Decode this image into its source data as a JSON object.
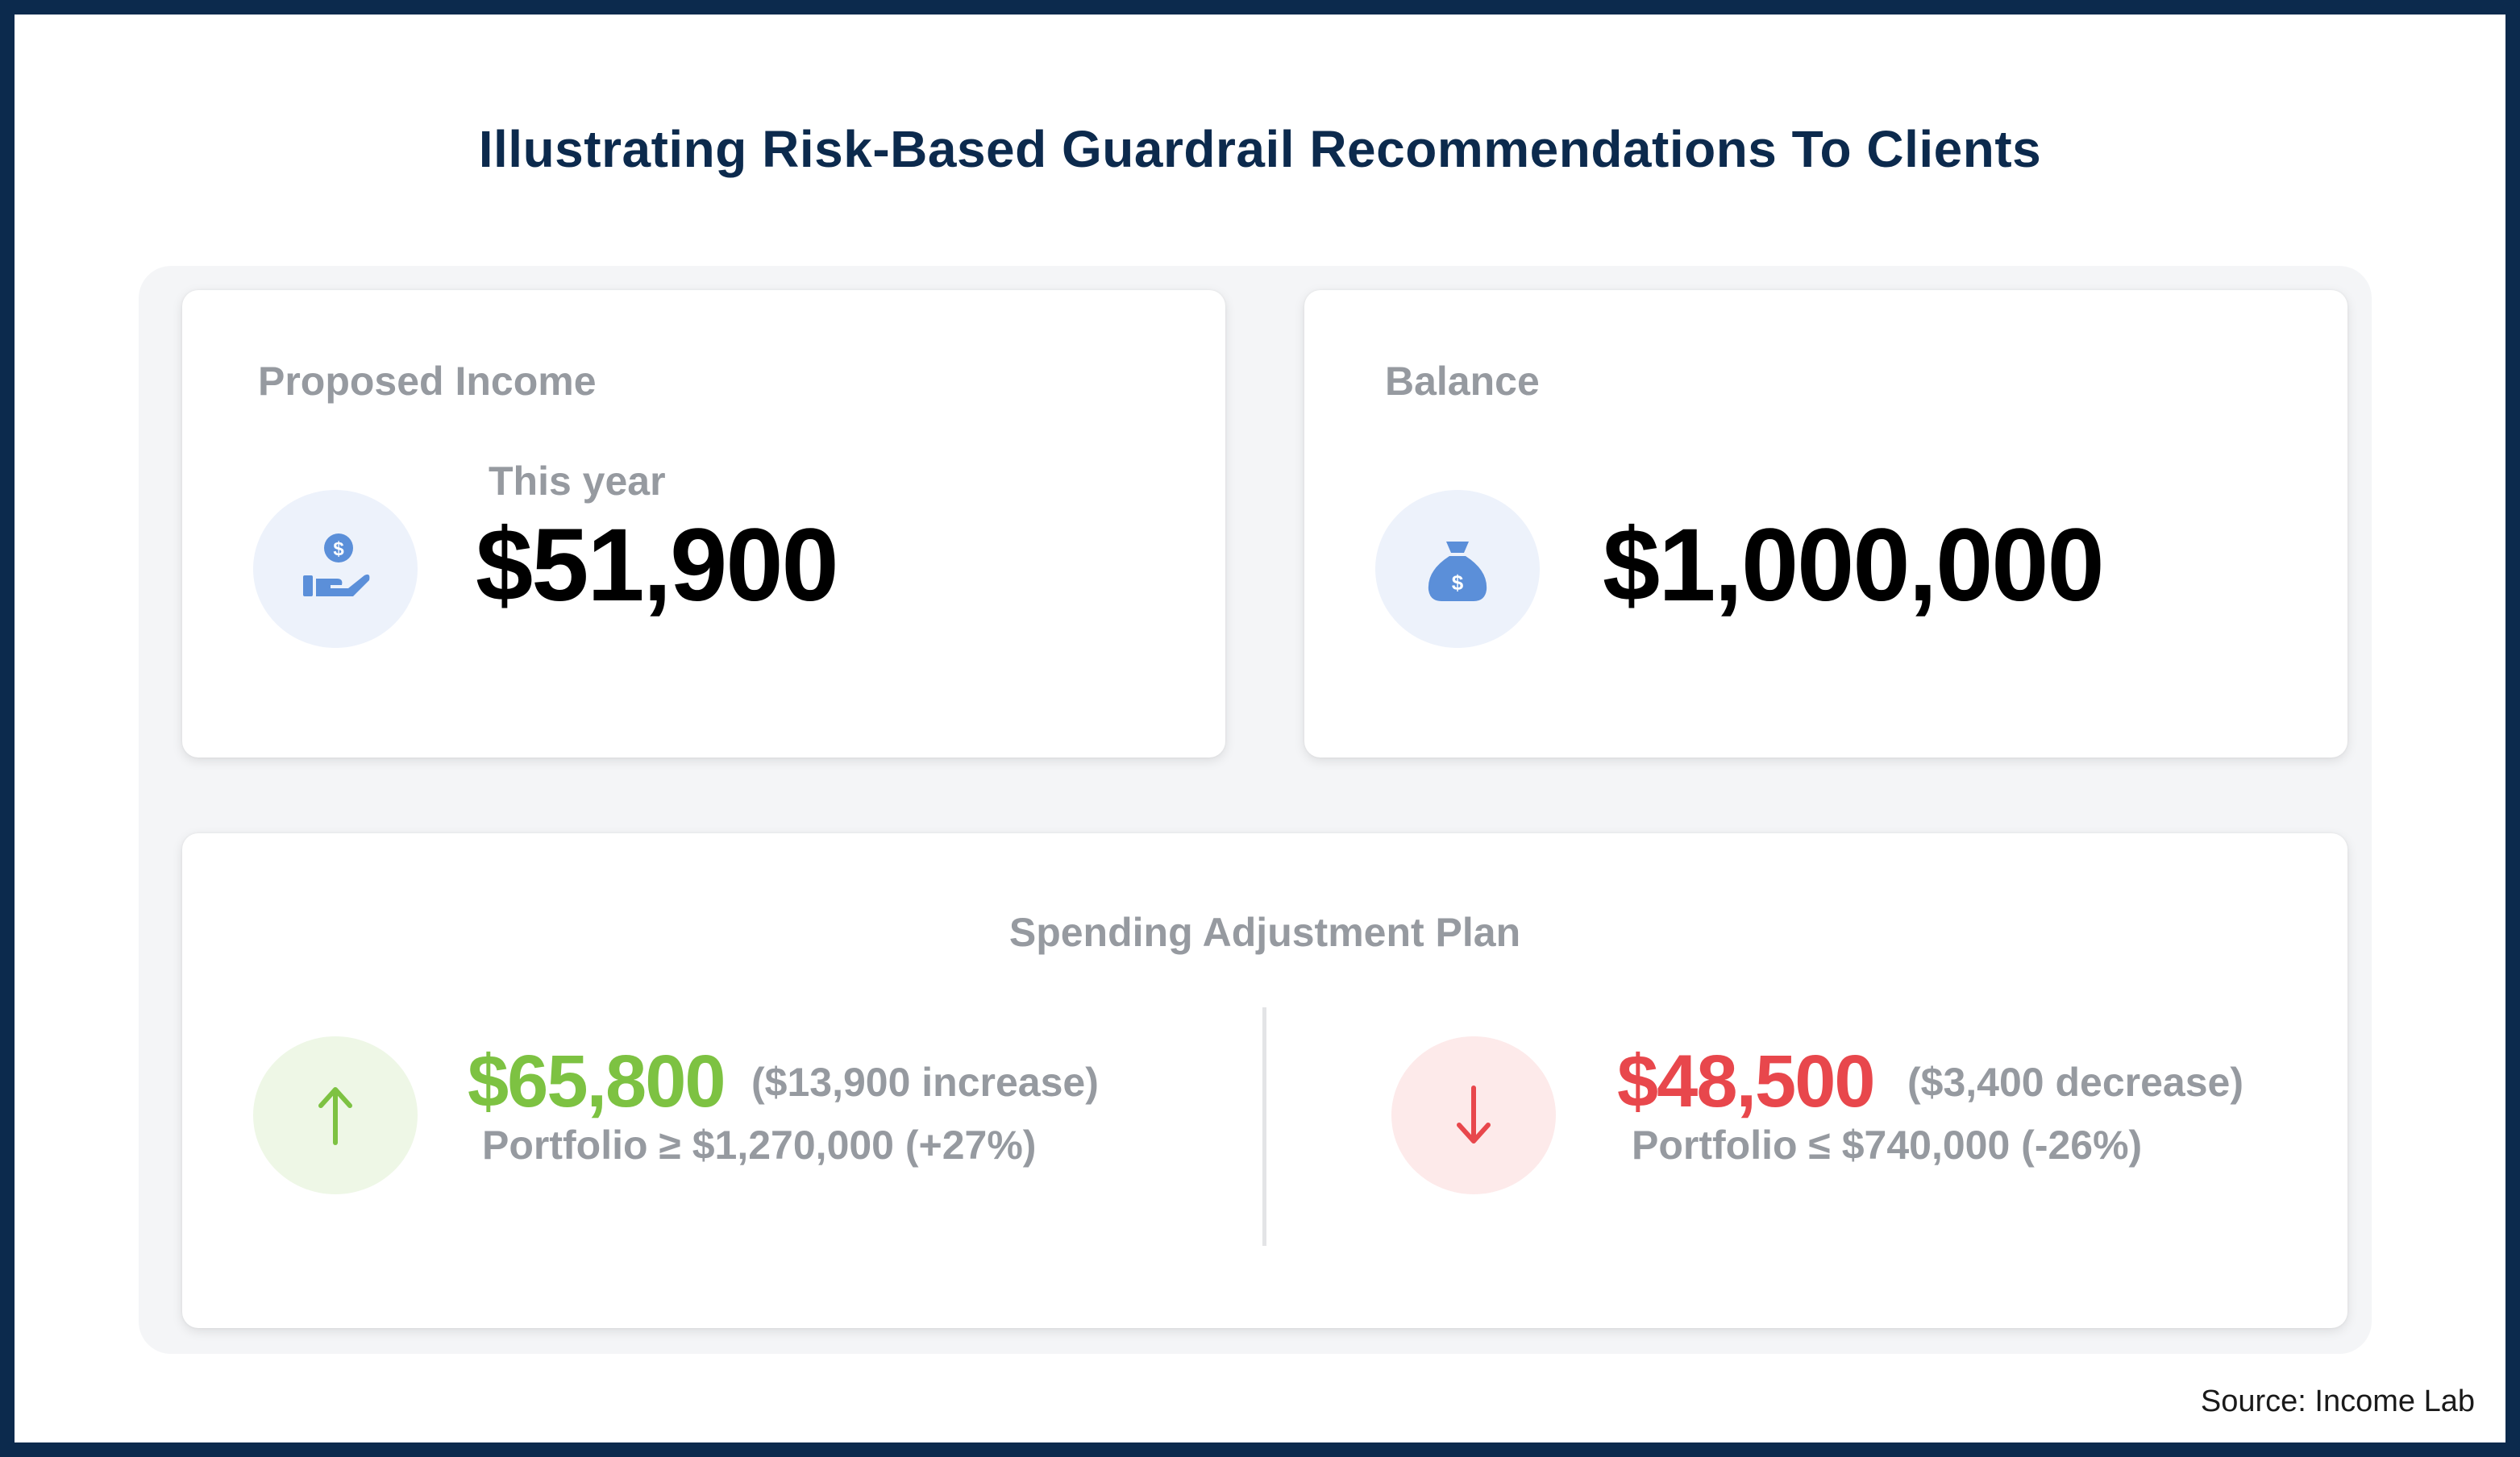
{
  "title": "Illustrating Risk-Based Guardrail Recommendations To Clients",
  "proposed_income": {
    "label": "Proposed Income",
    "sub_label": "This year",
    "value": "$51,900",
    "icon": "hand-dollar-icon",
    "icon_color": "#5b8fd9",
    "icon_bg": "#edf2fb"
  },
  "balance": {
    "label": "Balance",
    "value": "$1,000,000",
    "icon": "money-bag-icon",
    "icon_color": "#5b8fd9",
    "icon_bg": "#edf2fb"
  },
  "spending_plan": {
    "label": "Spending Adjustment Plan",
    "increase": {
      "amount": "$65,800",
      "change": "($13,900 increase)",
      "condition": "Portfolio ≥ $1,270,000 (+27%)",
      "icon": "arrow-up-icon",
      "color": "#7dc242",
      "icon_bg": "#eef7e6"
    },
    "decrease": {
      "amount": "$48,500",
      "change": "($3,400 decrease)",
      "condition": "Portfolio ≤ $740,000 (-26%)",
      "icon": "arrow-down-icon",
      "color": "#e8474c",
      "icon_bg": "#fdeaea"
    }
  },
  "source": "Source: Income Lab",
  "colors": {
    "frame": "#0c2a4d",
    "title": "#0c2a4d",
    "label_gray": "#969aa0"
  }
}
